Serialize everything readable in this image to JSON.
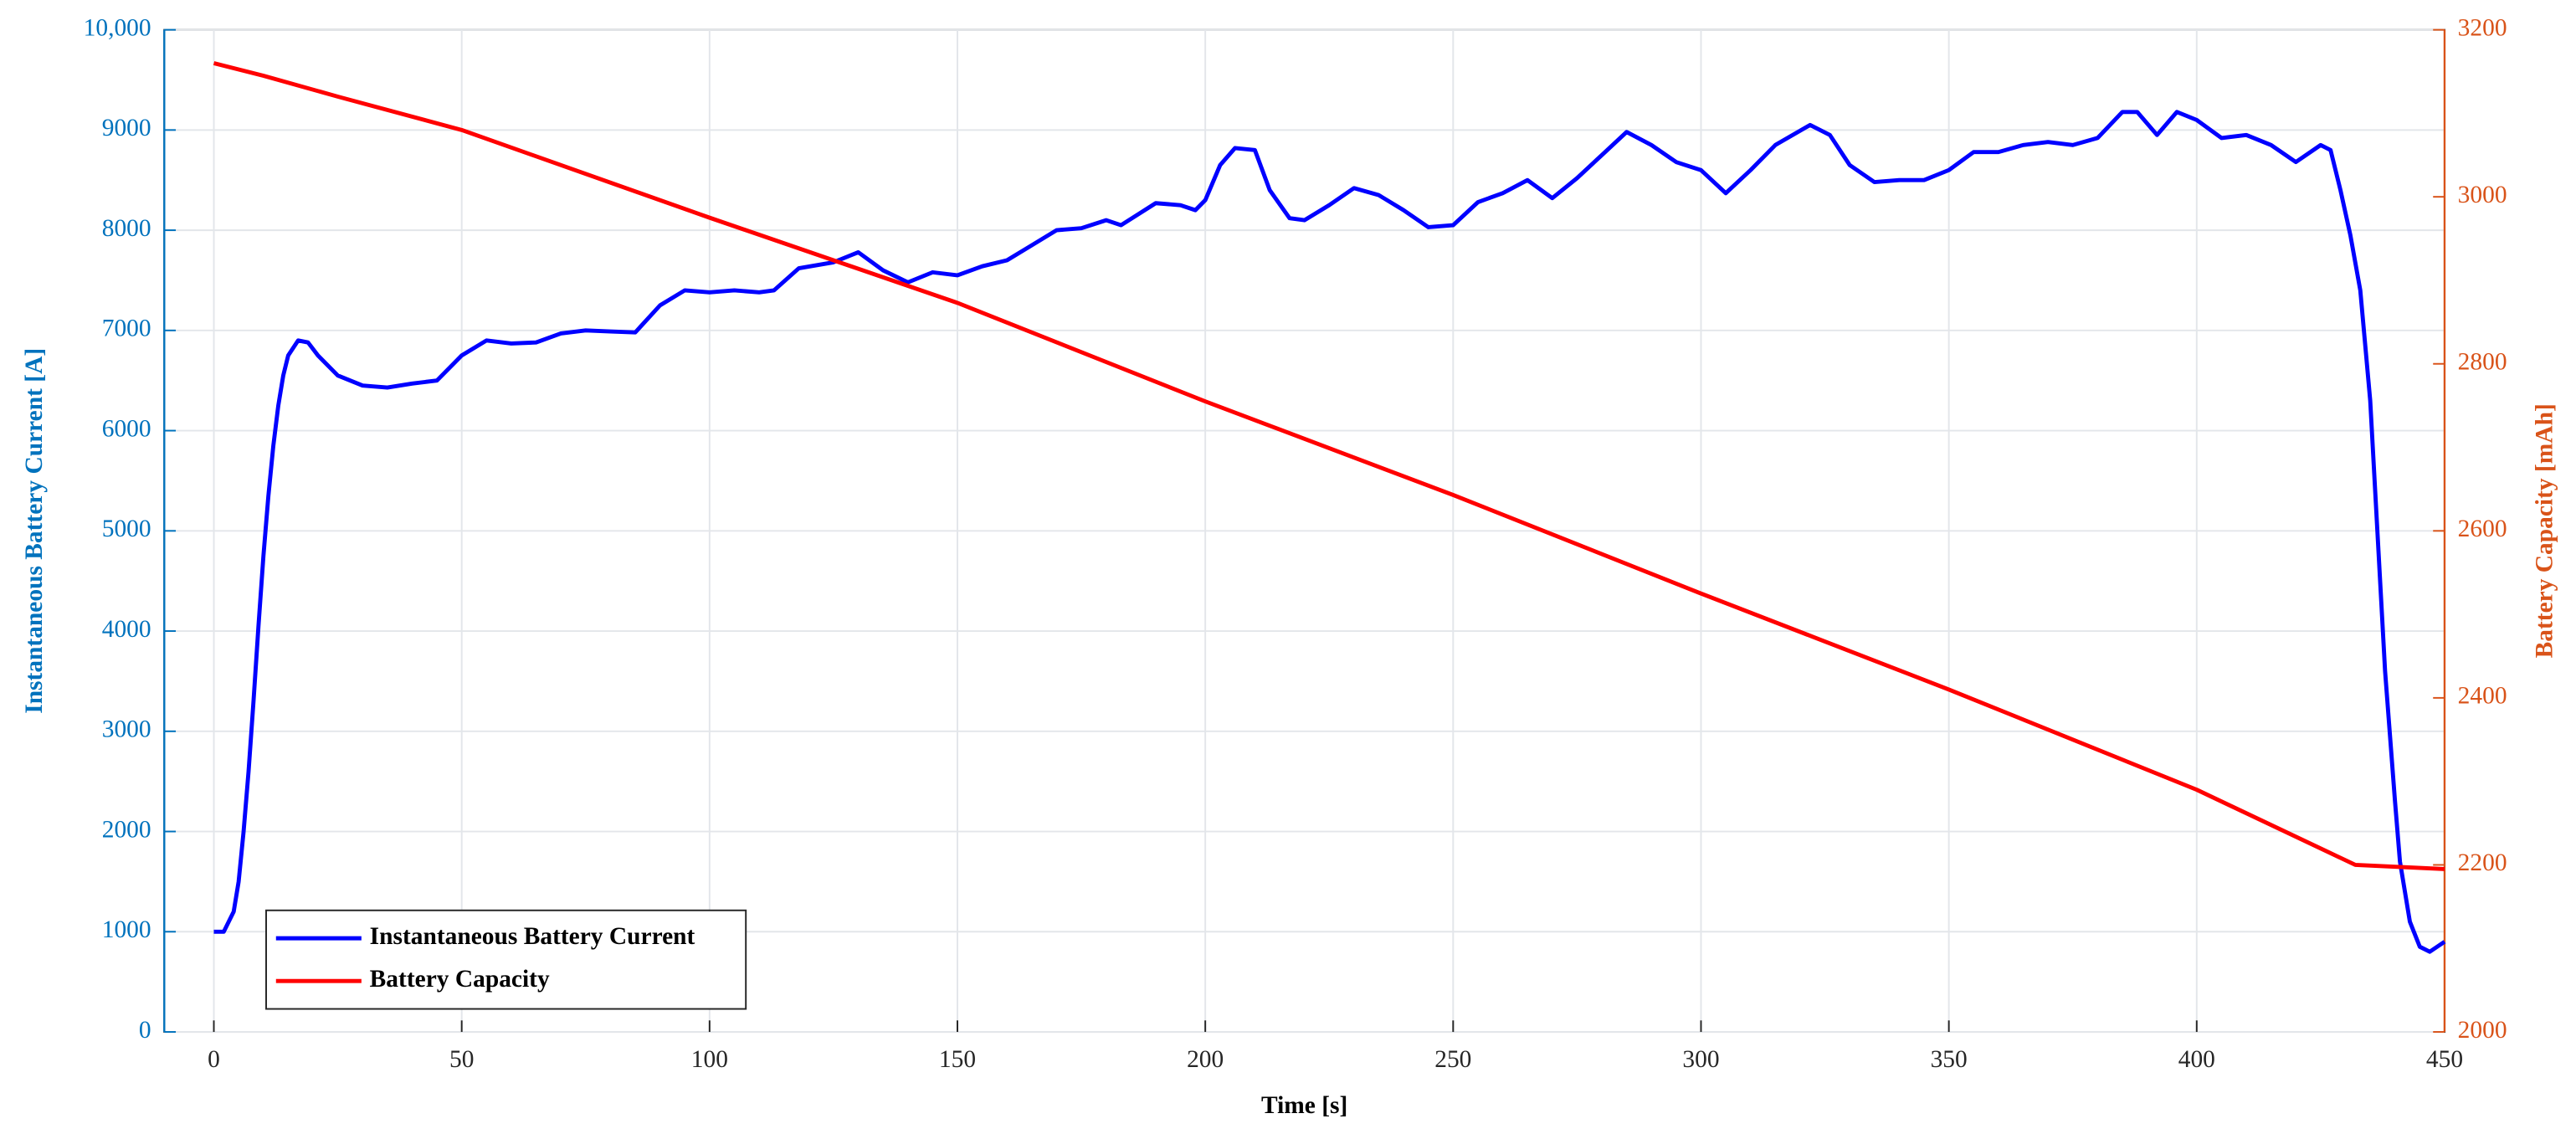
{
  "chart_data": {
    "type": "line",
    "xlabel": "Time [s]",
    "ylabel": "Instantaneous Battery Current [A]",
    "y2label": "Battery Capacity [mAh]",
    "xlim": [
      -10,
      450
    ],
    "xticks": [
      0,
      50,
      100,
      150,
      200,
      250,
      300,
      350,
      400,
      450
    ],
    "ylim": [
      0,
      10000
    ],
    "yticks": [
      0,
      1000,
      2000,
      3000,
      4000,
      5000,
      6000,
      7000,
      8000,
      9000,
      {
        "value": 10000,
        "label": "10,000"
      }
    ],
    "y2lim": [
      2000,
      3200
    ],
    "y2ticks": [
      2000,
      2200,
      2400,
      2600,
      2800,
      3000,
      3200
    ],
    "ycolor": "#0072bd",
    "y2color": "#d95319",
    "grid": true,
    "legend": "lower left",
    "series": [
      {
        "name": "Instantaneous Battery Current",
        "color": "#0000ff",
        "axis": "y",
        "x": [
          0,
          2,
          4,
          5,
          6,
          7,
          8,
          9,
          10,
          11,
          12,
          13,
          14,
          15,
          17,
          19,
          21,
          25,
          30,
          35,
          40,
          45,
          50,
          55,
          60,
          65,
          70,
          75,
          80,
          85,
          90,
          95,
          100,
          105,
          110,
          113,
          118,
          125,
          130,
          135,
          140,
          145,
          150,
          155,
          160,
          165,
          170,
          175,
          180,
          183,
          190,
          195,
          198,
          200,
          203,
          206,
          210,
          213,
          217,
          220,
          225,
          230,
          235,
          240,
          245,
          250,
          255,
          260,
          265,
          270,
          275,
          280,
          285,
          290,
          295,
          300,
          305,
          310,
          315,
          322,
          326,
          330,
          335,
          340,
          345,
          350,
          355,
          360,
          365,
          370,
          375,
          380,
          385,
          388,
          392,
          396,
          400,
          405,
          410,
          415,
          420,
          425,
          427,
          429,
          431,
          433,
          435,
          437,
          438,
          440,
          441,
          443,
          445,
          447,
          450
        ],
        "values": [
          1000,
          1000,
          1200,
          1500,
          2000,
          2600,
          3300,
          4050,
          4750,
          5350,
          5850,
          6250,
          6550,
          6750,
          6900,
          6880,
          6750,
          6550,
          6450,
          6430,
          6470,
          6500,
          6750,
          6900,
          6870,
          6880,
          6970,
          7000,
          6990,
          6980,
          7250,
          7400,
          7380,
          7400,
          7380,
          7400,
          7620,
          7680,
          7780,
          7600,
          7480,
          7580,
          7550,
          7640,
          7700,
          7850,
          8000,
          8020,
          8100,
          8050,
          8270,
          8250,
          8200,
          8300,
          8650,
          8820,
          8800,
          8400,
          8120,
          8100,
          8250,
          8420,
          8350,
          8200,
          8030,
          8050,
          8280,
          8370,
          8500,
          8320,
          8520,
          8750,
          8980,
          8850,
          8680,
          8600,
          8370,
          8600,
          8850,
          9050,
          8950,
          8650,
          8480,
          8500,
          8500,
          8600,
          8780,
          8780,
          8850,
          8880,
          8850,
          8920,
          9180,
          9180,
          8950,
          9180,
          9100,
          8920,
          8950,
          8850,
          8680,
          8850,
          8800,
          8400,
          7950,
          7400,
          6300,
          4500,
          3600,
          2300,
          1700,
          1100,
          850,
          800,
          900
        ]
      },
      {
        "name": "Battery Capacity",
        "color": "#ff0000",
        "axis": "y2",
        "x": [
          0,
          10,
          25,
          50,
          100,
          150,
          200,
          250,
          300,
          350,
          400,
          432,
          450
        ],
        "values": [
          3160,
          3145,
          3120,
          3080,
          2975,
          2873,
          2755,
          2643,
          2525,
          2410,
          2290,
          2200,
          2195
        ]
      }
    ]
  }
}
